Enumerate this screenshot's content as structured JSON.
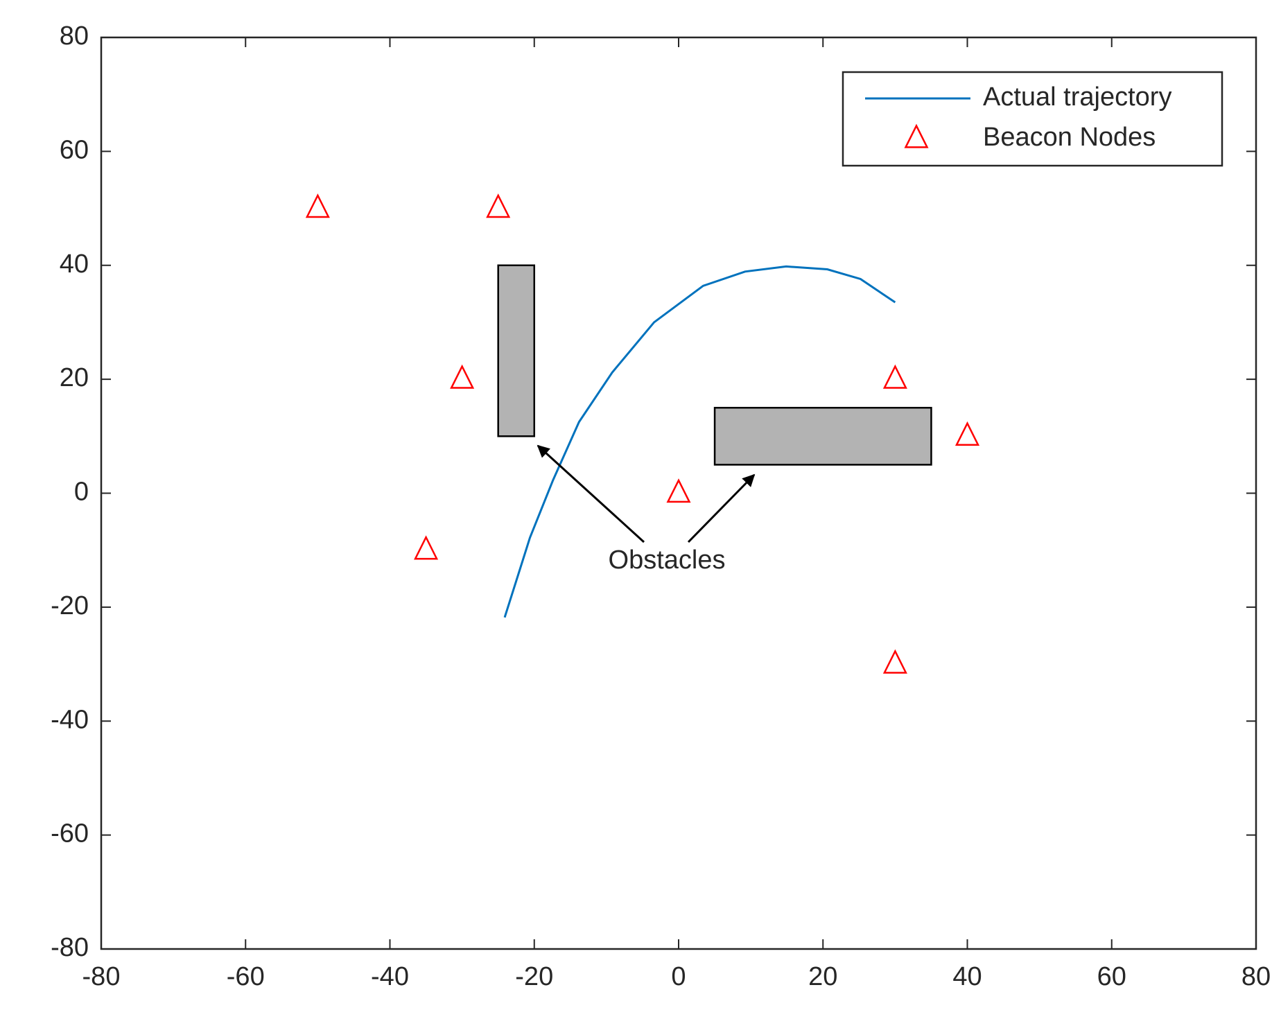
{
  "chart_data": {
    "type": "line",
    "annotation": "Obstacles",
    "xlim": [
      -80,
      80
    ],
    "ylim": [
      -80,
      80
    ],
    "xticks": [
      -80,
      -60,
      -40,
      -20,
      0,
      20,
      40,
      60,
      80
    ],
    "yticks": [
      -80,
      -60,
      -40,
      -20,
      0,
      20,
      40,
      60,
      80
    ],
    "grid": false,
    "legend": "upper right",
    "series": [
      {
        "name": "Actual trajectory",
        "type": "line",
        "color": "#0072bd",
        "x": [
          -24.1,
          -20.6,
          -17.4,
          -13.8,
          -9.2,
          -3.4,
          3.4,
          9.2,
          14.9,
          20.6,
          25.2,
          30
        ],
        "y": [
          -21.8,
          -7.8,
          2.3,
          12.5,
          21.2,
          30,
          36.4,
          38.9,
          39.8,
          39.3,
          37.6,
          33.5
        ]
      },
      {
        "name": "Beacon Nodes",
        "type": "scatter",
        "marker": "triangle",
        "color": "#ff0000",
        "x": [
          -50,
          -25,
          -30,
          -35,
          0,
          30,
          40,
          30
        ],
        "y": [
          50,
          50,
          20,
          -10,
          0,
          20,
          10,
          -30
        ]
      }
    ],
    "obstacles": [
      {
        "x": [
          -25,
          -20
        ],
        "y": [
          10,
          40
        ],
        "color": "#b3b3b3"
      },
      {
        "x": [
          5,
          35
        ],
        "y": [
          5,
          15
        ],
        "color": "#b3b3b3"
      }
    ]
  }
}
